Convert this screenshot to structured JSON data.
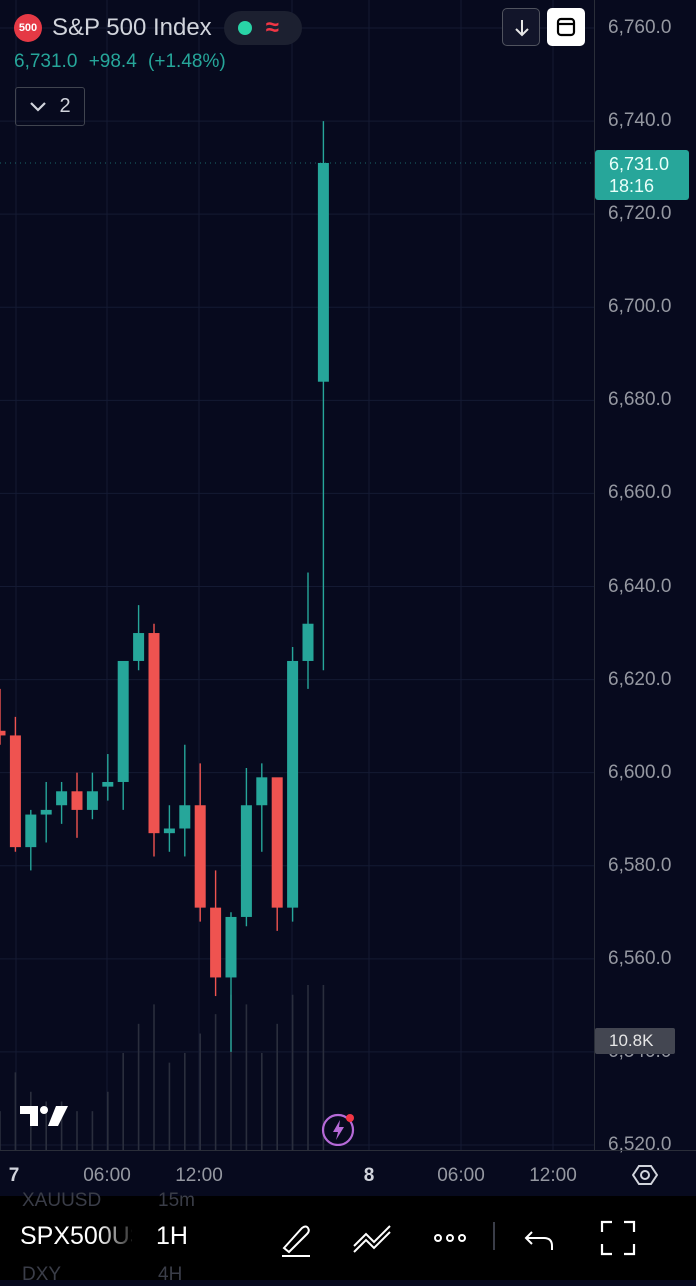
{
  "legend": {
    "symbol_badge": "500",
    "title": "S&P 500 Index",
    "last": "6,731.0",
    "change": "+98.4",
    "change_pct": "(+1.48%)",
    "indicators_count": "2"
  },
  "price_axis": {
    "labels": [
      "6,760.0",
      "6,740.0",
      "6,720.0",
      "6,700.0",
      "6,680.0",
      "6,660.0",
      "6,640.0",
      "6,620.0",
      "6,600.0",
      "6,580.0",
      "6,560.0",
      "6,540.0",
      "6,520.0"
    ],
    "last_price": "6,731.0",
    "countdown": "18:16",
    "volume": "10.8K"
  },
  "time_axis": {
    "labels": [
      "7",
      "06:00",
      "12:00",
      "8",
      "06:00",
      "12:00"
    ]
  },
  "toolbar": {
    "symbol": "SPX500USD",
    "interval": "1H",
    "ghost_symbols": [
      "XAUUSD",
      "DXY"
    ],
    "ghost_intervals": [
      "15m",
      "4H"
    ]
  },
  "colors": {
    "up": "#26a69a",
    "down": "#ef5350",
    "background": "#070a1e",
    "accent": "#2962ff"
  },
  "icons": [
    "settings-icon",
    "draw-icon",
    "indicator-icon",
    "more-icon",
    "undo-icon",
    "fullscreen-icon",
    "arrow-down-icon",
    "box-icon",
    "bolt-icon"
  ],
  "chart_data": {
    "type": "candlestick",
    "ylim": [
      6520,
      6760
    ],
    "candles": [
      {
        "o": 6609,
        "h": 6618,
        "l": 6606,
        "c": 6608
      },
      {
        "o": 6608,
        "h": 6612,
        "l": 6583,
        "c": 6584
      },
      {
        "o": 6584,
        "h": 6592,
        "l": 6579,
        "c": 6591
      },
      {
        "o": 6591,
        "h": 6598,
        "l": 6585,
        "c": 6592
      },
      {
        "o": 6593,
        "h": 6598,
        "l": 6589,
        "c": 6596
      },
      {
        "o": 6596,
        "h": 6600,
        "l": 6586,
        "c": 6592
      },
      {
        "o": 6592,
        "h": 6600,
        "l": 6590,
        "c": 6596
      },
      {
        "o": 6597,
        "h": 6604,
        "l": 6594,
        "c": 6598
      },
      {
        "o": 6598,
        "h": 6624,
        "l": 6592,
        "c": 6624
      },
      {
        "o": 6624,
        "h": 6636,
        "l": 6622,
        "c": 6630
      },
      {
        "o": 6630,
        "h": 6632,
        "l": 6582,
        "c": 6587
      },
      {
        "o": 6587,
        "h": 6593,
        "l": 6583,
        "c": 6588
      },
      {
        "o": 6588,
        "h": 6606,
        "l": 6582,
        "c": 6593
      },
      {
        "o": 6593,
        "h": 6602,
        "l": 6568,
        "c": 6571
      },
      {
        "o": 6571,
        "h": 6579,
        "l": 6552,
        "c": 6556
      },
      {
        "o": 6556,
        "h": 6570,
        "l": 6540,
        "c": 6569
      },
      {
        "o": 6569,
        "h": 6601,
        "l": 6567,
        "c": 6593
      },
      {
        "o": 6593,
        "h": 6602,
        "l": 6583,
        "c": 6599
      },
      {
        "o": 6599,
        "h": 6598,
        "l": 6566,
        "c": 6571
      },
      {
        "o": 6571,
        "h": 6627,
        "l": 6568,
        "c": 6624
      },
      {
        "o": 6624,
        "h": 6643,
        "l": 6618,
        "c": 6632
      },
      {
        "o": 6684,
        "h": 6740,
        "l": 6622,
        "c": 6731
      }
    ],
    "volumes": [
      4,
      8,
      6,
      5,
      5,
      4,
      4,
      6,
      10,
      13,
      15,
      9,
      10,
      12,
      14,
      16,
      15,
      10,
      13,
      16,
      17,
      17
    ],
    "volume_tag": "10.8K"
  }
}
